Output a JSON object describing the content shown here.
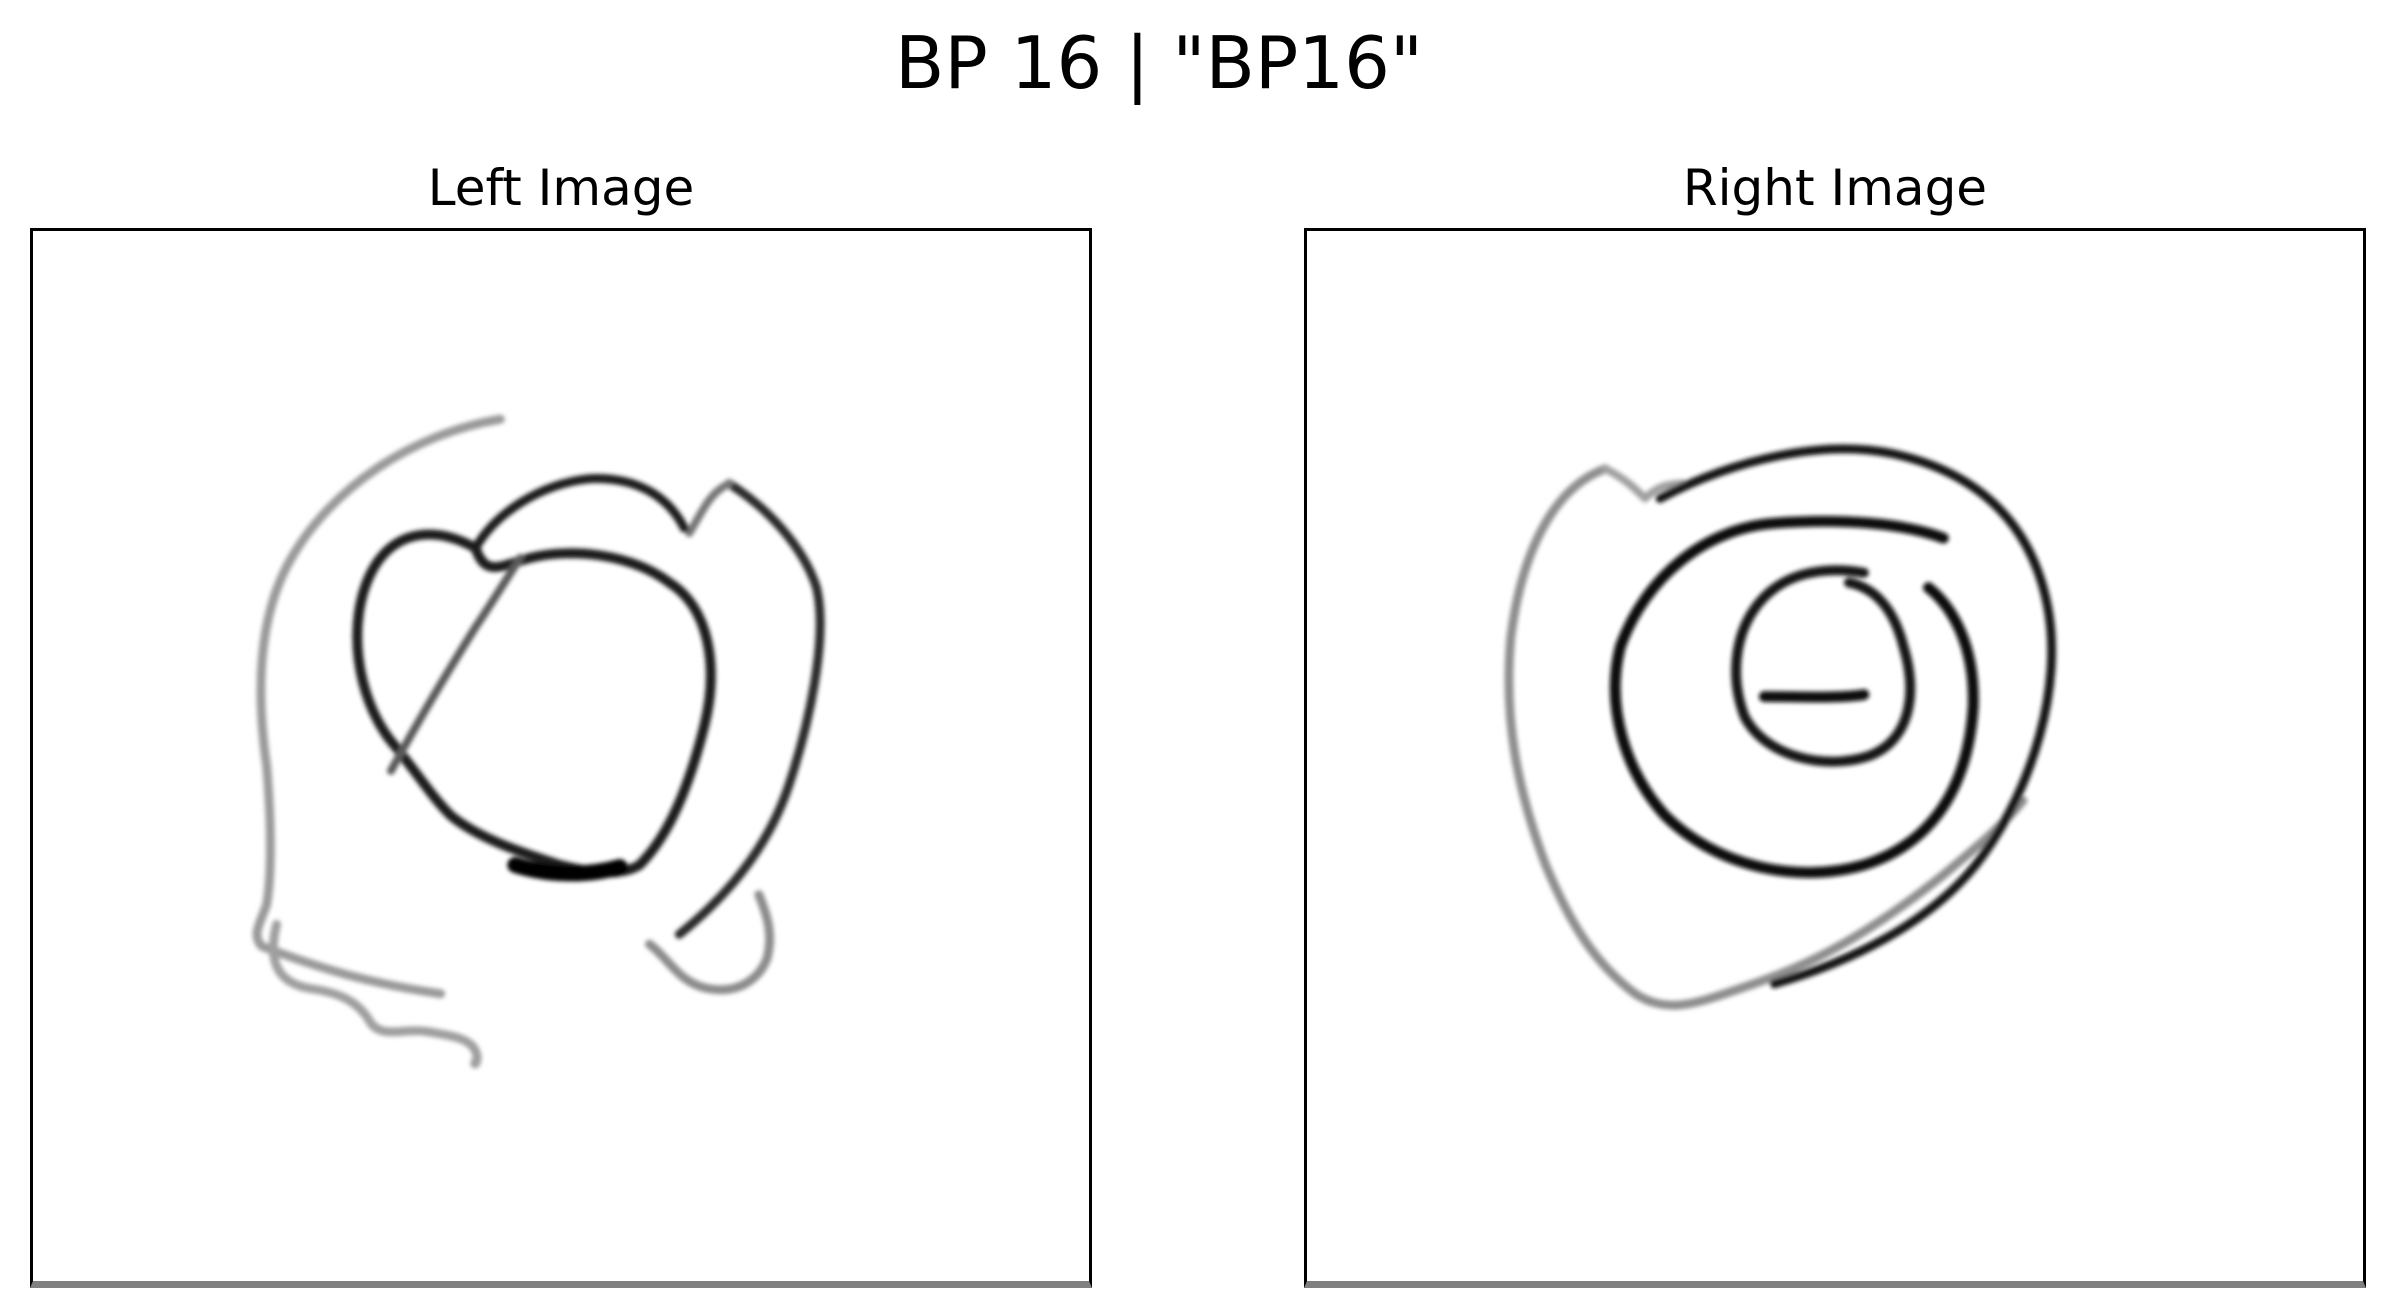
{
  "figure": {
    "title": "BP 16 | \"BP16\""
  },
  "panels": [
    {
      "title": "Left Image",
      "content": "sketch-loops"
    },
    {
      "title": "Right Image",
      "content": "sketch-spiral"
    }
  ],
  "colors": {
    "background": "#ffffff",
    "stroke_dark": "#111111",
    "stroke_light": "#9a9a9a",
    "frame": "#000000"
  }
}
